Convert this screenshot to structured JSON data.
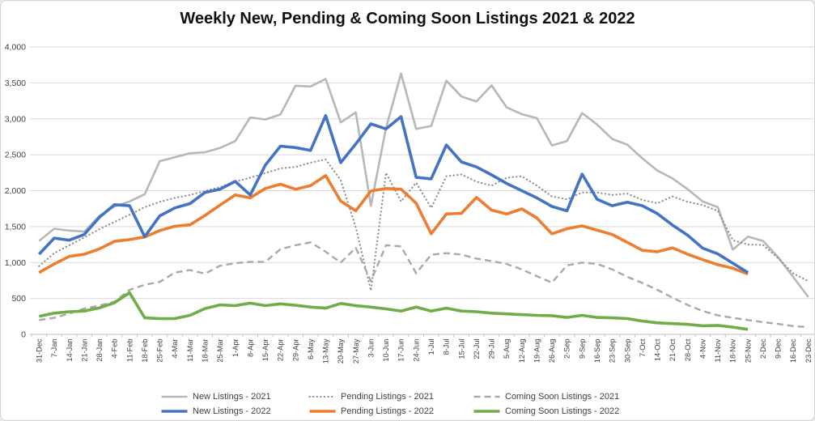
{
  "chart_data": {
    "type": "line",
    "title": "Weekly New, Pending & Coming Soon Listings 2021 & 2022",
    "xlabel": "",
    "ylabel": "",
    "ylim": [
      0,
      4000
    ],
    "ytick_step": 500,
    "grid": "horizontal",
    "legend_position": "bottom",
    "categories": [
      "31-Dec",
      "7-Jan",
      "14-Jan",
      "21-Jan",
      "28-Jan",
      "4-Feb",
      "11-Feb",
      "18-Feb",
      "25-Feb",
      "4-Mar",
      "11-Mar",
      "18-Mar",
      "25-Mar",
      "1-Apr",
      "8-Apr",
      "15-Apr",
      "22-Apr",
      "29-Apr",
      "6-May",
      "13-May",
      "20-May",
      "27-May",
      "3-Jun",
      "10-Jun",
      "17-Jun",
      "24-Jun",
      "1-Jul",
      "8-Jul",
      "15-Jul",
      "22-Jul",
      "29-Jul",
      "5-Aug",
      "12-Aug",
      "19-Aug",
      "26-Aug",
      "2-Sep",
      "9-Sep",
      "16-Sep",
      "23-Sep",
      "30-Sep",
      "7-Oct",
      "14-Oct",
      "21-Oct",
      "28-Oct",
      "4-Nov",
      "11-Nov",
      "18-Nov",
      "25-Nov",
      "2-Dec",
      "9-Dec",
      "16-Dec",
      "23-Dec"
    ],
    "series": [
      {
        "name": "New Listings - 2021",
        "color": "#b7b7b7",
        "style": "solid",
        "width": 2.6,
        "values": [
          1300,
          1470,
          1445,
          1430,
          1650,
          1780,
          1850,
          1950,
          2410,
          2465,
          2520,
          2535,
          2595,
          2690,
          3020,
          2990,
          3060,
          3460,
          3450,
          3555,
          2950,
          3090,
          1790,
          2870,
          3630,
          2860,
          2900,
          3530,
          3310,
          3240,
          3465,
          3160,
          3065,
          3010,
          2630,
          2690,
          3080,
          2920,
          2720,
          2640,
          2450,
          2280,
          2170,
          2020,
          1850,
          1770,
          1180,
          1360,
          1300,
          1075,
          800,
          520
        ]
      },
      {
        "name": "Pending Listings - 2021",
        "color": "#8f8f8f",
        "style": "dotted",
        "width": 2.2,
        "values": [
          950,
          1130,
          1240,
          1350,
          1465,
          1565,
          1665,
          1770,
          1845,
          1900,
          1940,
          1995,
          2050,
          2125,
          2180,
          2245,
          2310,
          2330,
          2390,
          2435,
          2145,
          1490,
          610,
          2250,
          1850,
          2110,
          1760,
          2200,
          2225,
          2125,
          2070,
          2180,
          2200,
          2070,
          1920,
          1880,
          1975,
          1975,
          1940,
          1960,
          1870,
          1825,
          1920,
          1845,
          1800,
          1720,
          1310,
          1250,
          1245,
          1060,
          850,
          740
        ]
      },
      {
        "name": "Coming Soon Listings - 2021",
        "color": "#a9a9a9",
        "style": "dashed",
        "width": 2.4,
        "values": [
          200,
          230,
          290,
          360,
          400,
          455,
          620,
          690,
          730,
          860,
          895,
          845,
          955,
          990,
          1010,
          1010,
          1185,
          1240,
          1280,
          1150,
          1000,
          1205,
          740,
          1240,
          1225,
          850,
          1110,
          1130,
          1110,
          1055,
          1020,
          980,
          905,
          810,
          720,
          960,
          1000,
          980,
          905,
          800,
          715,
          620,
          510,
          410,
          325,
          265,
          230,
          200,
          170,
          145,
          115,
          100
        ]
      },
      {
        "name": "New Listings - 2022",
        "color": "#4472c4",
        "style": "solid",
        "width": 3.6,
        "values": [
          1115,
          1340,
          1310,
          1390,
          1630,
          1805,
          1790,
          1360,
          1650,
          1760,
          1820,
          1975,
          2020,
          2130,
          1940,
          2355,
          2620,
          2600,
          2560,
          3045,
          2390,
          2650,
          2930,
          2860,
          3030,
          2185,
          2165,
          2635,
          2400,
          2330,
          2220,
          2100,
          2000,
          1900,
          1780,
          1720,
          2230,
          1880,
          1790,
          1840,
          1790,
          1680,
          1520,
          1380,
          1200,
          1120,
          990,
          860
        ]
      },
      {
        "name": "Pending Listings - 2022",
        "color": "#ed7d31",
        "style": "solid",
        "width": 3.6,
        "values": [
          860,
          980,
          1085,
          1115,
          1190,
          1295,
          1320,
          1355,
          1445,
          1505,
          1525,
          1655,
          1800,
          1940,
          1900,
          2030,
          2090,
          2020,
          2070,
          2210,
          1855,
          1720,
          1995,
          2030,
          2020,
          1825,
          1400,
          1675,
          1685,
          1905,
          1730,
          1675,
          1745,
          1620,
          1400,
          1470,
          1510,
          1450,
          1390,
          1280,
          1170,
          1150,
          1205,
          1115,
          1040,
          970,
          920,
          840
        ]
      },
      {
        "name": "Coming Soon Listings - 2022",
        "color": "#70ad47",
        "style": "solid",
        "width": 3.6,
        "values": [
          250,
          295,
          315,
          325,
          370,
          440,
          580,
          230,
          220,
          220,
          265,
          360,
          410,
          400,
          435,
          400,
          425,
          405,
          380,
          365,
          430,
          400,
          380,
          355,
          325,
          380,
          325,
          365,
          325,
          315,
          295,
          285,
          275,
          265,
          260,
          235,
          265,
          235,
          230,
          220,
          185,
          160,
          150,
          140,
          120,
          125,
          100,
          70
        ]
      }
    ]
  }
}
